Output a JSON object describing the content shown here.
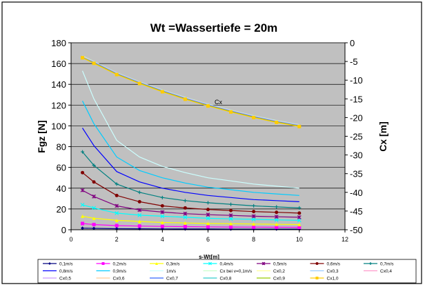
{
  "chart_data": {
    "type": "line",
    "title": "Wt =Wassertiefe = 20m",
    "xlabel": "s-Wt[m]",
    "ylabel": "Fgz [N]",
    "y2label": "Cx [m]",
    "annotation": "Cx",
    "xlim": [
      0,
      12
    ],
    "ylim": [
      0,
      180
    ],
    "y2lim": [
      -50,
      0
    ],
    "xticks": [
      "0",
      "2",
      "4",
      "6",
      "8",
      "10",
      "12"
    ],
    "yticks": [
      "0",
      "20",
      "40",
      "60",
      "80",
      "100",
      "120",
      "140",
      "160",
      "180"
    ],
    "y2ticks": [
      "0",
      "-5",
      "-10",
      "-15",
      "-20",
      "-25",
      "-30",
      "-35",
      "-40",
      "-45",
      "-50"
    ],
    "grid": true,
    "legend_position": "bottom",
    "x": [
      0.5,
      1,
      2,
      3,
      4,
      5,
      6,
      7,
      8,
      9,
      10
    ],
    "series": [
      {
        "name": "0,1m/s",
        "axis": "left",
        "color": "#000080",
        "marker": "diamond",
        "values": [
          1.5,
          1.3,
          1.0,
          0.9,
          0.8,
          0.7,
          0.7,
          0.6,
          0.6,
          0.6,
          0.6
        ]
      },
      {
        "name": "0,2m/s",
        "axis": "left",
        "color": "#ff00ff",
        "marker": "square",
        "values": [
          6,
          5,
          4,
          3.5,
          3.2,
          3,
          2.8,
          2.6,
          2.5,
          2.4,
          2.3
        ]
      },
      {
        "name": "0,3m/s",
        "axis": "left",
        "color": "#ffff00",
        "marker": "triangle",
        "values": [
          13,
          11,
          9,
          8,
          7,
          6.5,
          6,
          5.8,
          5.5,
          5.2,
          5
        ]
      },
      {
        "name": "0,4m/s",
        "axis": "left",
        "color": "#00ffff",
        "marker": "x",
        "values": [
          24,
          21,
          16,
          14,
          13,
          12,
          11,
          10.5,
          10,
          9.5,
          9
        ]
      },
      {
        "name": "0,5m/s",
        "axis": "left",
        "color": "#800080",
        "marker": "star",
        "values": [
          38,
          32,
          23,
          19,
          17,
          15.5,
          14.5,
          13.8,
          13,
          12.5,
          12
        ]
      },
      {
        "name": "0,6m/s",
        "axis": "left",
        "color": "#800000",
        "marker": "circle",
        "values": [
          55,
          46,
          33,
          27,
          23,
          21,
          19.5,
          18.5,
          17.5,
          16.8,
          16
        ]
      },
      {
        "name": "0,7m/s",
        "axis": "left",
        "color": "#008080",
        "marker": "plus",
        "values": [
          75,
          62,
          44,
          36,
          31,
          28,
          26,
          24.5,
          23,
          22,
          21
        ]
      },
      {
        "name": "0,8m/s",
        "axis": "left",
        "color": "#0000ff",
        "marker": "none",
        "values": [
          98,
          81,
          56,
          46,
          40,
          36,
          33,
          31,
          29,
          28,
          27
        ]
      },
      {
        "name": "0,9m/s",
        "axis": "left",
        "color": "#00ccff",
        "marker": "none",
        "values": [
          124,
          102,
          70,
          57,
          50,
          45,
          41,
          38.5,
          36,
          34.5,
          33
        ]
      },
      {
        "name": "1m/s",
        "axis": "left",
        "color": "#ccffff",
        "marker": "none",
        "values": [
          153,
          126,
          86,
          70,
          61,
          55,
          50,
          47,
          44,
          42,
          40
        ]
      },
      {
        "name": "Cx bei v=0,1m/s",
        "axis": "right",
        "color": "#ccffcc",
        "marker": "none",
        "values": [
          -3.5,
          -5.0,
          -8.0,
          -10.4,
          -12.6,
          -14.6,
          -16.4,
          -18.0,
          -19.5,
          -20.8,
          -21.9
        ]
      },
      {
        "name": "Cx0,2",
        "axis": "right",
        "color": "#ffff99",
        "marker": "none",
        "values": [
          -3.6,
          -5.1,
          -8.1,
          -10.5,
          -12.7,
          -14.7,
          -16.5,
          -18.1,
          -19.6,
          -20.9,
          -22.0
        ]
      },
      {
        "name": "Cx0,3",
        "axis": "right",
        "color": "#99ccff",
        "marker": "none",
        "values": [
          -3.7,
          -5.1,
          -8.1,
          -10.5,
          -12.7,
          -14.7,
          -16.5,
          -18.1,
          -19.6,
          -20.9,
          -22.0
        ]
      },
      {
        "name": "Cx0,4",
        "axis": "right",
        "color": "#ff99cc",
        "marker": "none",
        "values": [
          -3.7,
          -5.2,
          -8.2,
          -10.6,
          -12.8,
          -14.8,
          -16.6,
          -18.2,
          -19.7,
          -21.0,
          -22.1
        ]
      },
      {
        "name": "Cx0,5",
        "axis": "right",
        "color": "#cc99ff",
        "marker": "none",
        "values": [
          -3.8,
          -5.2,
          -8.2,
          -10.6,
          -12.8,
          -14.8,
          -16.6,
          -18.2,
          -19.7,
          -21.0,
          -22.1
        ]
      },
      {
        "name": "Cx0,6",
        "axis": "right",
        "color": "#ffcc99",
        "marker": "none",
        "values": [
          -3.8,
          -5.3,
          -8.3,
          -10.7,
          -12.9,
          -14.9,
          -16.7,
          -18.3,
          -19.8,
          -21.1,
          -22.2
        ]
      },
      {
        "name": "Cx0,7",
        "axis": "right",
        "color": "#3366ff",
        "marker": "none",
        "values": [
          -3.9,
          -5.3,
          -8.3,
          -10.7,
          -12.9,
          -14.9,
          -16.7,
          -18.3,
          -19.8,
          -21.1,
          -22.2
        ]
      },
      {
        "name": "Cx0,8",
        "axis": "right",
        "color": "#33cccc",
        "marker": "none",
        "values": [
          -3.9,
          -5.4,
          -8.4,
          -10.8,
          -13.0,
          -15.0,
          -16.8,
          -18.4,
          -19.9,
          -21.2,
          -22.3
        ]
      },
      {
        "name": "Cx0,9",
        "axis": "right",
        "color": "#99cc00",
        "marker": "none",
        "values": [
          -4.0,
          -5.4,
          -8.4,
          -10.8,
          -13.0,
          -15.0,
          -16.8,
          -18.4,
          -19.9,
          -21.2,
          -22.3
        ]
      },
      {
        "name": "Cx1,0",
        "axis": "right",
        "color": "#ffcc00",
        "marker": "square",
        "values": [
          -4.0,
          -5.5,
          -8.5,
          -10.9,
          -13.1,
          -15.1,
          -16.9,
          -18.5,
          -20.0,
          -21.3,
          -22.4
        ]
      }
    ]
  }
}
